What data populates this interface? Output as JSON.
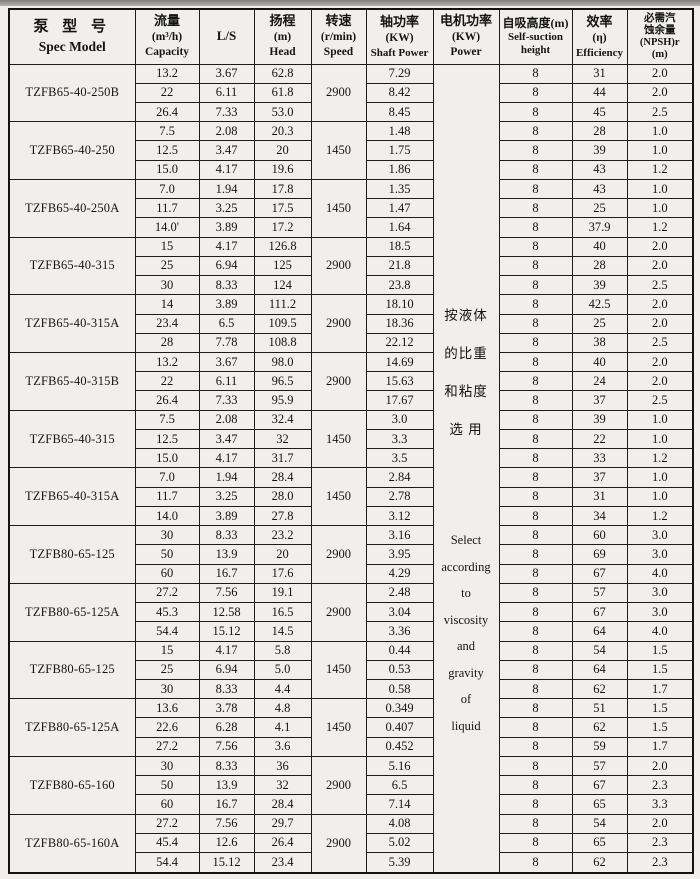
{
  "page": {
    "background_color": "#f0efeb",
    "top_band_color": "#8f8f8d",
    "table_border_color": "#1c1c1c",
    "text_color": "#141414"
  },
  "table": {
    "headers": [
      {
        "lines": [
          "泵 型 号",
          "Spec Model"
        ]
      },
      {
        "lines": [
          "流量",
          "(m³/h)",
          "Capacity"
        ]
      },
      {
        "lines": [
          "L/S"
        ]
      },
      {
        "lines": [
          "扬程",
          "(m)",
          "Head"
        ]
      },
      {
        "lines": [
          "转速",
          "(r/min)",
          "Speed"
        ]
      },
      {
        "lines": [
          "轴功率",
          "(KW)",
          "Shaft Power"
        ]
      },
      {
        "lines": [
          "电机功率",
          "(KW)",
          "Power"
        ]
      },
      {
        "lines": [
          "自吸高度(m)",
          "Self-suction",
          "height"
        ]
      },
      {
        "lines": [
          "效率",
          "(η)",
          "Efficiency"
        ]
      },
      {
        "lines": [
          "必需汽",
          "蚀余量",
          "(NPSH)r",
          "(m)"
        ]
      }
    ],
    "motor_power_note": {
      "chinese_lines": [
        "按液体",
        "的比重",
        "和粘度",
        "选  用"
      ],
      "english_lines": [
        "Select",
        "according",
        "to",
        "viscosity",
        "and",
        "gravity",
        "of",
        "liquid"
      ]
    },
    "groups": [
      {
        "model": "TZFB65-40-250B",
        "speed": "2900",
        "rows": [
          [
            "13.2",
            "3.67",
            "62.8",
            "7.29",
            "8",
            "31",
            "2.0"
          ],
          [
            "22",
            "6.11",
            "61.8",
            "8.42",
            "8",
            "44",
            "2.0"
          ],
          [
            "26.4",
            "7.33",
            "53.0",
            "8.45",
            "8",
            "45",
            "2.5"
          ]
        ]
      },
      {
        "model": "TZFB65-40-250",
        "speed": "1450",
        "rows": [
          [
            "7.5",
            "2.08",
            "20.3",
            "1.48",
            "8",
            "28",
            "1.0"
          ],
          [
            "12.5",
            "3.47",
            "20",
            "1.75",
            "8",
            "39",
            "1.0"
          ],
          [
            "15.0",
            "4.17",
            "19.6",
            "1.86",
            "8",
            "43",
            "1.2"
          ]
        ]
      },
      {
        "model": "TZFB65-40-250A",
        "speed": "1450",
        "rows": [
          [
            "7.0",
            "1.94",
            "17.8",
            "1.35",
            "8",
            "43",
            "1.0"
          ],
          [
            "11.7",
            "3.25",
            "17.5",
            "1.47",
            "8",
            "25",
            "1.0"
          ],
          [
            "14.0'",
            "3.89",
            "17.2",
            "1.64",
            "8",
            "37.9",
            "1.2"
          ]
        ]
      },
      {
        "model": "TZFB65-40-315",
        "speed": "2900",
        "rows": [
          [
            "15",
            "4.17",
            "126.8",
            "18.5",
            "8",
            "40",
            "2.0"
          ],
          [
            "25",
            "6.94",
            "125",
            "21.8",
            "8",
            "28",
            "2.0"
          ],
          [
            "30",
            "8.33",
            "124",
            "23.8",
            "8",
            "39",
            "2.5"
          ]
        ]
      },
      {
        "model": "TZFB65-40-315A",
        "speed": "2900",
        "rows": [
          [
            "14",
            "3.89",
            "111.2",
            "18.10",
            "8",
            "42.5",
            "2.0"
          ],
          [
            "23.4",
            "6.5",
            "109.5",
            "18.36",
            "8",
            "25",
            "2.0"
          ],
          [
            "28",
            "7.78",
            "108.8",
            "22.12",
            "8",
            "38",
            "2.5"
          ]
        ]
      },
      {
        "model": "TZFB65-40-315B",
        "speed": "2900",
        "rows": [
          [
            "13.2",
            "3.67",
            "98.0",
            "14.69",
            "8",
            "40",
            "2.0"
          ],
          [
            "22",
            "6.11",
            "96.5",
            "15.63",
            "8",
            "24",
            "2.0"
          ],
          [
            "26.4",
            "7.33",
            "95.9",
            "17.67",
            "8",
            "37",
            "2.5"
          ]
        ]
      },
      {
        "model": "TZFB65-40-315",
        "speed": "1450",
        "rows": [
          [
            "7.5",
            "2.08",
            "32.4",
            "3.0",
            "8",
            "39",
            "1.0"
          ],
          [
            "12.5",
            "3.47",
            "32",
            "3.3",
            "8",
            "22",
            "1.0"
          ],
          [
            "15.0",
            "4.17",
            "31.7",
            "3.5",
            "8",
            "33",
            "1.2"
          ]
        ]
      },
      {
        "model": "TZFB65-40-315A",
        "speed": "1450",
        "rows": [
          [
            "7.0",
            "1.94",
            "28.4",
            "2.84",
            "8",
            "37",
            "1.0"
          ],
          [
            "11.7",
            "3.25",
            "28.0",
            "2.78",
            "8",
            "31",
            "1.0"
          ],
          [
            "14.0",
            "3.89",
            "27.8",
            "3.12",
            "8",
            "34",
            "1.2"
          ]
        ]
      },
      {
        "model": "TZFB80-65-125",
        "speed": "2900",
        "rows": [
          [
            "30",
            "8.33",
            "23.2",
            "3.16",
            "8",
            "60",
            "3.0"
          ],
          [
            "50",
            "13.9",
            "20",
            "3.95",
            "8",
            "69",
            "3.0"
          ],
          [
            "60",
            "16.7",
            "17.6",
            "4.29",
            "8",
            "67",
            "4.0"
          ]
        ]
      },
      {
        "model": "TZFB80-65-125A",
        "speed": "2900",
        "rows": [
          [
            "27.2",
            "7.56",
            "19.1",
            "2.48",
            "8",
            "57",
            "3.0"
          ],
          [
            "45.3",
            "12.58",
            "16.5",
            "3.04",
            "8",
            "67",
            "3.0"
          ],
          [
            "54.4",
            "15.12",
            "14.5",
            "3.36",
            "8",
            "64",
            "4.0"
          ]
        ]
      },
      {
        "model": "TZFB80-65-125",
        "speed": "1450",
        "rows": [
          [
            "15",
            "4.17",
            "5.8",
            "0.44",
            "8",
            "54",
            "1.5"
          ],
          [
            "25",
            "6.94",
            "5.0",
            "0.53",
            "8",
            "64",
            "1.5"
          ],
          [
            "30",
            "8.33",
            "4.4",
            "0.58",
            "8",
            "62",
            "1.7"
          ]
        ]
      },
      {
        "model": "TZFB80-65-125A",
        "speed": "1450",
        "rows": [
          [
            "13.6",
            "3.78",
            "4.8",
            "0.349",
            "8",
            "51",
            "1.5"
          ],
          [
            "22.6",
            "6.28",
            "4.1",
            "0.407",
            "8",
            "62",
            "1.5"
          ],
          [
            "27.2",
            "7.56",
            "3.6",
            "0.452",
            "8",
            "59",
            "1.7"
          ]
        ]
      },
      {
        "model": "TZFB80-65-160",
        "speed": "2900",
        "rows": [
          [
            "30",
            "8.33",
            "36",
            "5.16",
            "8",
            "57",
            "2.0"
          ],
          [
            "50",
            "13.9",
            "32",
            "6.5",
            "8",
            "67",
            "2.3"
          ],
          [
            "60",
            "16.7",
            "28.4",
            "7.14",
            "8",
            "65",
            "3.3"
          ]
        ]
      },
      {
        "model": "TZFB80-65-160A",
        "speed": "2900",
        "rows": [
          [
            "27.2",
            "7.56",
            "29.7",
            "4.08",
            "8",
            "54",
            "2.0"
          ],
          [
            "45.4",
            "12.6",
            "26.4",
            "5.02",
            "8",
            "65",
            "2.3"
          ],
          [
            "54.4",
            "15.12",
            "23.4",
            "5.39",
            "8",
            "62",
            "2.3"
          ]
        ]
      }
    ]
  }
}
